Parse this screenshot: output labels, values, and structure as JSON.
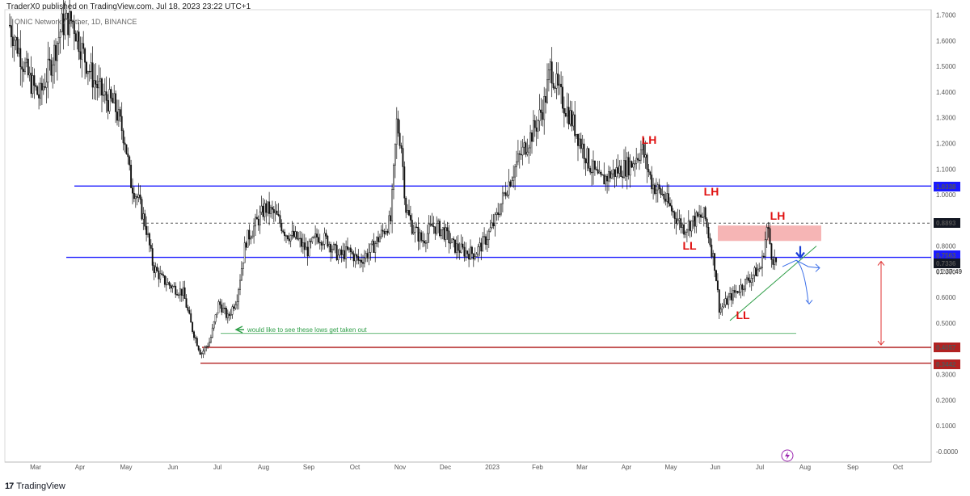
{
  "header": {
    "text": "TraderX0 published on TradingView.com, Jul 18, 2023 23:22 UTC+1"
  },
  "symbol": {
    "text": "ONIC Network / Tether, 1D, BINANCE"
  },
  "footer": {
    "logo": "17",
    "brand": "TradingView"
  },
  "chart_data": {
    "type": "candlestick",
    "title": "",
    "price_axis_ticks": [
      "1.7000",
      "1.6000",
      "1.5000",
      "1.4000",
      "1.3000",
      "1.2000",
      "1.1000",
      "1.0000",
      "0.9000",
      "0.8000",
      "0.7000",
      "0.6000",
      "0.5000",
      "0.4000",
      "0.3000",
      "0.2000",
      "0.1000",
      "-0.0000"
    ],
    "time_axis_ticks": [
      "Mar",
      "Apr",
      "May",
      "Jun",
      "Jul",
      "Aug",
      "Sep",
      "Oct",
      "Nov",
      "Dec",
      "2023",
      "Feb",
      "Mar",
      "Apr",
      "May",
      "Jun",
      "Jul",
      "Aug",
      "Sep",
      "Oct"
    ],
    "price_labels": [
      {
        "text": "1.0338",
        "color": "#1a1aff"
      },
      {
        "text": "0.8893",
        "color": "#131722"
      },
      {
        "text": "0.7563",
        "color": "#1a1aff"
      },
      {
        "text": "0.7336",
        "color": "#131722"
      },
      {
        "text": "01:37:49",
        "color": "#131722"
      },
      {
        "text": "0.4057",
        "color": "#b22222"
      },
      {
        "text": "0.3442",
        "color": "#b22222"
      }
    ],
    "horizontal_levels": [
      {
        "value": 1.0338,
        "style": "solid",
        "color": "#1a1aff"
      },
      {
        "value": 0.8893,
        "style": "dashed",
        "color": "#555555"
      },
      {
        "value": 0.7563,
        "style": "solid",
        "color": "#1a1aff"
      },
      {
        "value": 0.4057,
        "style": "solid",
        "color": "#b22222"
      },
      {
        "value": 0.3442,
        "style": "solid",
        "color": "#b22222"
      },
      {
        "value": 0.46,
        "style": "solid",
        "color": "#2e9e47"
      }
    ],
    "annotations": [
      {
        "text": "LH",
        "color": "#e01010"
      },
      {
        "text": "LH",
        "color": "#e01010"
      },
      {
        "text": "LH",
        "color": "#e01010"
      },
      {
        "text": "LL",
        "color": "#e01010"
      },
      {
        "text": "LL",
        "color": "#e01010"
      },
      {
        "text": "would like to see these lows get taken out",
        "color": "#2e9e47"
      }
    ],
    "close_path": [
      [
        "2022-02-20",
        1.66
      ],
      [
        "2022-02-27",
        1.55
      ],
      [
        "2022-03-05",
        1.45
      ],
      [
        "2022-03-12",
        1.38
      ],
      [
        "2022-03-20",
        1.52
      ],
      [
        "2022-03-27",
        1.66
      ],
      [
        "2022-04-03",
        1.68
      ],
      [
        "2022-04-10",
        1.55
      ],
      [
        "2022-04-17",
        1.45
      ],
      [
        "2022-04-24",
        1.38
      ],
      [
        "2022-05-01",
        1.35
      ],
      [
        "2022-05-08",
        1.22
      ],
      [
        "2022-05-12",
        1.05
      ],
      [
        "2022-05-17",
        0.98
      ],
      [
        "2022-05-22",
        0.88
      ],
      [
        "2022-05-27",
        0.72
      ],
      [
        "2022-06-02",
        0.67
      ],
      [
        "2022-06-09",
        0.64
      ],
      [
        "2022-06-16",
        0.62
      ],
      [
        "2022-06-22",
        0.48
      ],
      [
        "2022-06-28",
        0.38
      ],
      [
        "2022-07-04",
        0.43
      ],
      [
        "2022-07-10",
        0.58
      ],
      [
        "2022-07-16",
        0.52
      ],
      [
        "2022-07-22",
        0.6
      ],
      [
        "2022-07-28",
        0.82
      ],
      [
        "2022-08-03",
        0.88
      ],
      [
        "2022-08-10",
        0.95
      ],
      [
        "2022-08-17",
        0.92
      ],
      [
        "2022-08-24",
        0.85
      ],
      [
        "2022-08-31",
        0.83
      ],
      [
        "2022-09-07",
        0.78
      ],
      [
        "2022-09-14",
        0.84
      ],
      [
        "2022-09-21",
        0.82
      ],
      [
        "2022-09-28",
        0.76
      ],
      [
        "2022-10-05",
        0.78
      ],
      [
        "2022-10-12",
        0.74
      ],
      [
        "2022-10-19",
        0.78
      ],
      [
        "2022-10-26",
        0.84
      ],
      [
        "2022-11-02",
        0.9
      ],
      [
        "2022-11-06",
        1.28
      ],
      [
        "2022-11-09",
        1.2
      ],
      [
        "2022-11-12",
        0.95
      ],
      [
        "2022-11-16",
        0.88
      ],
      [
        "2022-11-23",
        0.82
      ],
      [
        "2022-11-30",
        0.88
      ],
      [
        "2022-12-07",
        0.86
      ],
      [
        "2022-12-14",
        0.8
      ],
      [
        "2022-12-21",
        0.78
      ],
      [
        "2022-12-28",
        0.77
      ],
      [
        "2023-01-04",
        0.82
      ],
      [
        "2023-01-11",
        0.9
      ],
      [
        "2023-01-18",
        1.02
      ],
      [
        "2023-01-25",
        1.12
      ],
      [
        "2023-02-01",
        1.2
      ],
      [
        "2023-02-08",
        1.28
      ],
      [
        "2023-02-13",
        1.36
      ],
      [
        "2023-02-17",
        1.5
      ],
      [
        "2023-02-22",
        1.4
      ],
      [
        "2023-03-01",
        1.32
      ],
      [
        "2023-03-08",
        1.22
      ],
      [
        "2023-03-15",
        1.12
      ],
      [
        "2023-03-22",
        1.05
      ],
      [
        "2023-03-29",
        1.08
      ],
      [
        "2023-04-05",
        1.1
      ],
      [
        "2023-04-12",
        1.12
      ],
      [
        "2023-04-19",
        1.18
      ],
      [
        "2023-04-26",
        1.04
      ],
      [
        "2023-05-03",
        1.0
      ],
      [
        "2023-05-10",
        0.93
      ],
      [
        "2023-05-17",
        0.87
      ],
      [
        "2023-05-24",
        0.9
      ],
      [
        "2023-05-31",
        0.92
      ],
      [
        "2023-06-07",
        0.72
      ],
      [
        "2023-06-10",
        0.55
      ],
      [
        "2023-06-17",
        0.6
      ],
      [
        "2023-06-24",
        0.64
      ],
      [
        "2023-07-01",
        0.68
      ],
      [
        "2023-07-08",
        0.72
      ],
      [
        "2023-07-12",
        0.88
      ],
      [
        "2023-07-15",
        0.76
      ],
      [
        "2023-07-18",
        0.7336
      ]
    ],
    "target_range": {
      "top": 0.7563,
      "bottom": 0.4057,
      "color": "#e03030"
    }
  }
}
